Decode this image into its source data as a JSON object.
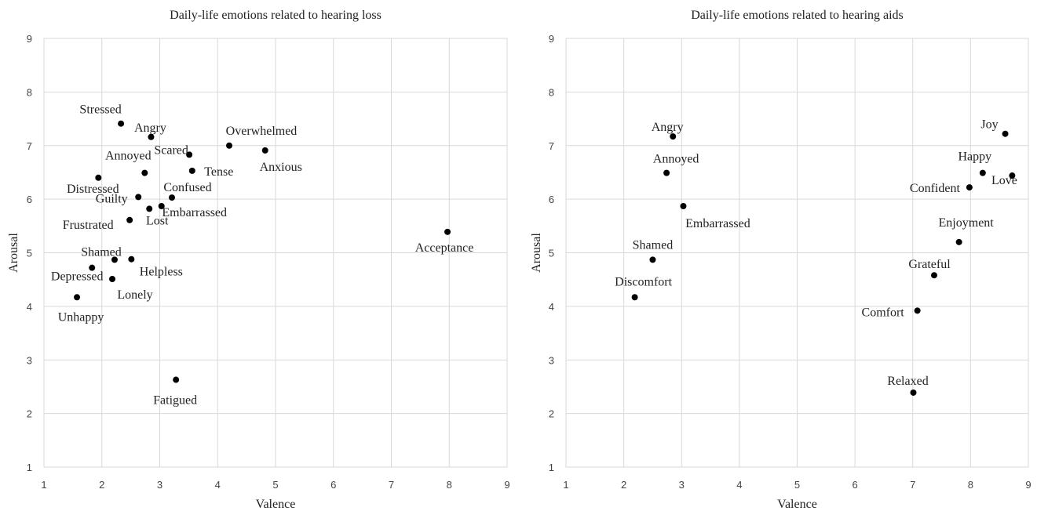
{
  "chart_data": [
    {
      "type": "scatter",
      "title": "Daily-life emotions related to hearing loss",
      "xlabel": "Valence",
      "ylabel": "Arousal",
      "xlim": [
        1,
        9
      ],
      "ylim": [
        1,
        9
      ],
      "xticks": [
        "1",
        "2",
        "3",
        "4",
        "5",
        "6",
        "7",
        "8",
        "9"
      ],
      "yticks": [
        "1",
        "2",
        "3",
        "4",
        "5",
        "6",
        "7",
        "8",
        "9"
      ],
      "grid": true,
      "color": "#000000",
      "points": [
        {
          "label": "Stressed",
          "x": 2.33,
          "y": 7.41
        },
        {
          "label": "Angry",
          "x": 2.85,
          "y": 7.16
        },
        {
          "label": "Overwhelmed",
          "x": 4.2,
          "y": 7.0
        },
        {
          "label": "Scared",
          "x": 3.51,
          "y": 6.83
        },
        {
          "label": "Anxious",
          "x": 4.82,
          "y": 6.91
        },
        {
          "label": "Annoyed",
          "x": 2.74,
          "y": 6.49
        },
        {
          "label": "Tense",
          "x": 3.56,
          "y": 6.53
        },
        {
          "label": "Distressed",
          "x": 1.94,
          "y": 6.4
        },
        {
          "label": "Confused",
          "x": 3.21,
          "y": 6.03
        },
        {
          "label": "Guilty",
          "x": 2.63,
          "y": 6.04
        },
        {
          "label": "Embarrassed",
          "x": 3.03,
          "y": 5.87
        },
        {
          "label": "Lost",
          "x": 2.82,
          "y": 5.82
        },
        {
          "label": "Frustrated",
          "x": 2.48,
          "y": 5.61
        },
        {
          "label": "Acceptance",
          "x": 7.97,
          "y": 5.39
        },
        {
          "label": "Shamed",
          "x": 2.22,
          "y": 4.87
        },
        {
          "label": "Helpless",
          "x": 2.51,
          "y": 4.88
        },
        {
          "label": "Depressed",
          "x": 1.83,
          "y": 4.72
        },
        {
          "label": "Lonely",
          "x": 2.18,
          "y": 4.51
        },
        {
          "label": "Unhappy",
          "x": 1.57,
          "y": 4.17
        },
        {
          "label": "Fatigued",
          "x": 3.28,
          "y": 2.63
        }
      ]
    },
    {
      "type": "scatter",
      "title": "Daily-life emotions related to hearing aids",
      "xlabel": "Valence",
      "ylabel": "Arousal",
      "xlim": [
        1,
        9
      ],
      "ylim": [
        1,
        9
      ],
      "xticks": [
        "1",
        "2",
        "3",
        "4",
        "5",
        "6",
        "7",
        "8",
        "9"
      ],
      "yticks": [
        "1",
        "2",
        "3",
        "4",
        "5",
        "6",
        "7",
        "8",
        "9"
      ],
      "grid": true,
      "color": "#000000",
      "points": [
        {
          "label": "Angry",
          "x": 2.85,
          "y": 7.17
        },
        {
          "label": "Annoyed",
          "x": 2.74,
          "y": 6.49
        },
        {
          "label": "Embarrassed",
          "x": 3.03,
          "y": 5.87
        },
        {
          "label": "Shamed",
          "x": 2.5,
          "y": 4.87
        },
        {
          "label": "Discomfort",
          "x": 2.19,
          "y": 4.17
        },
        {
          "label": "Joy",
          "x": 8.6,
          "y": 7.22
        },
        {
          "label": "Happy",
          "x": 8.21,
          "y": 6.49
        },
        {
          "label": "Confident",
          "x": 7.98,
          "y": 6.22
        },
        {
          "label": "Love",
          "x": 8.72,
          "y": 6.44
        },
        {
          "label": "Enjoyment",
          "x": 7.8,
          "y": 5.2
        },
        {
          "label": "Grateful",
          "x": 7.37,
          "y": 4.58
        },
        {
          "label": "Comfort",
          "x": 7.08,
          "y": 3.92
        },
        {
          "label": "Relaxed",
          "x": 7.01,
          "y": 2.39
        }
      ]
    }
  ]
}
